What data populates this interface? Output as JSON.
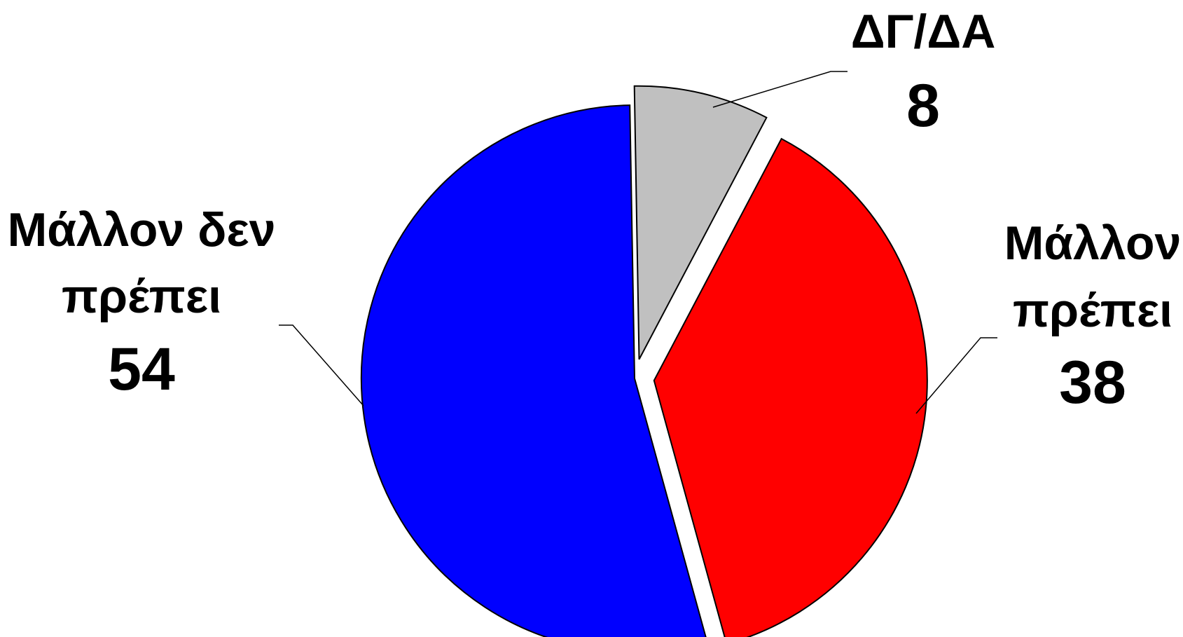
{
  "chart_data": {
    "type": "pie",
    "title": "",
    "start_angle_deg": -1,
    "slices": [
      {
        "key": "dg",
        "label_lines": [
          "ΔΓ/ΔΑ"
        ],
        "value": 8,
        "value_label": "8",
        "color": "#C0C0C0",
        "exploded": true
      },
      {
        "key": "mallon-prepei",
        "label_lines": [
          "Μάλλον",
          "πρέπει"
        ],
        "value": 38,
        "value_label": "38",
        "color": "#FF0000",
        "exploded": true
      },
      {
        "key": "mallon-den-prepei",
        "label_lines": [
          "Μάλλον δεν",
          "πρέπει"
        ],
        "value": 54,
        "value_label": "54",
        "color": "#0000FF",
        "exploded": false
      }
    ]
  }
}
